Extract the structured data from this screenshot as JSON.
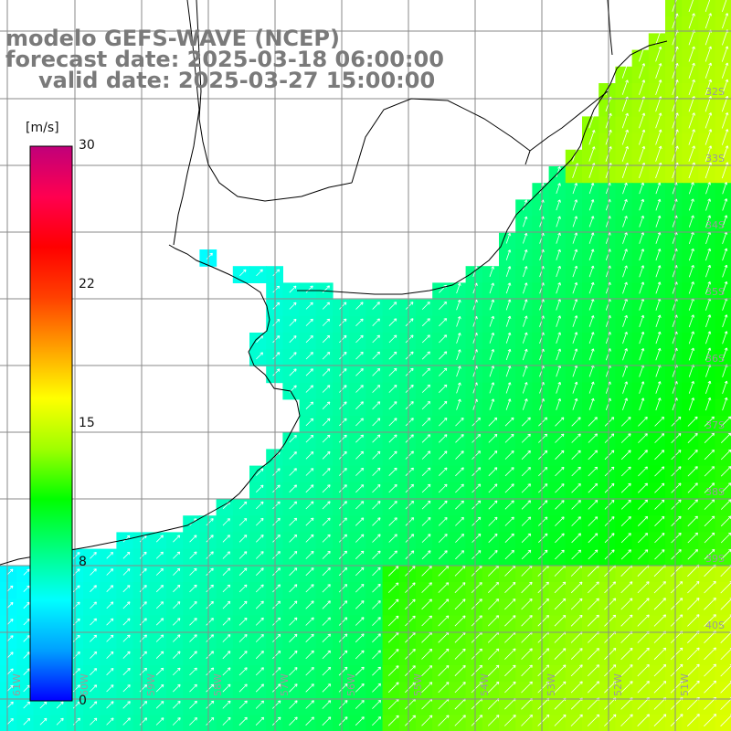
{
  "title": {
    "line1": "modelo GEFS-WAVE (NCEP)",
    "line2": "forecast date: 2025-03-18 06:00:00",
    "line3": "valid date: 2025-03-27 15:00:00"
  },
  "colorbar": {
    "unit": "[m/s]",
    "ticks": [
      "30",
      "22",
      "15",
      "8",
      "0"
    ],
    "stops": [
      "#0000ff",
      "#00a0ff",
      "#00ffff",
      "#00ff80",
      "#00ff00",
      "#a0ff00",
      "#ffff00",
      "#ffa000",
      "#ff4000",
      "#ff0000",
      "#ff0050",
      "#c0007a"
    ]
  },
  "lat_labels": [
    "32S",
    "33S",
    "34S",
    "35S",
    "36S",
    "37S",
    "38S",
    "39S",
    "40S"
  ],
  "lon_labels": [
    "61W",
    "60W",
    "59W",
    "58W",
    "57W",
    "56W",
    "55W",
    "54W",
    "53W",
    "52W",
    "51W"
  ],
  "colors": {
    "land": "#ffffff",
    "grid": "#8a8a8a",
    "coast": "#000000",
    "arrow": "#ffffff"
  }
}
